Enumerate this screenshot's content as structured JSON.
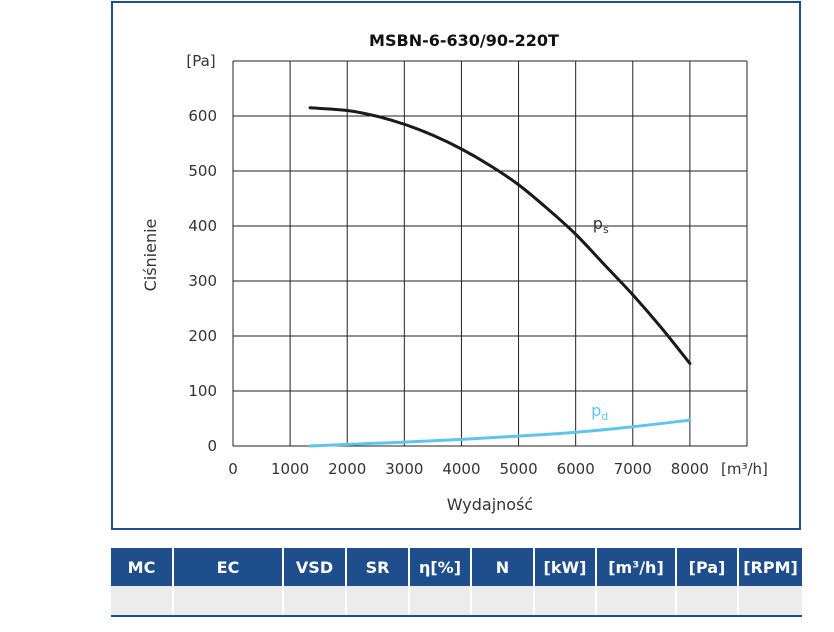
{
  "chart_data": {
    "type": "line",
    "title": "MSBN-6-630/90-220T",
    "xlabel": "Wydajność",
    "ylabel": "Ciśnienie",
    "x_unit_label": "[m³/h]",
    "y_unit_label": "[Pa]",
    "xlim": [
      0,
      9000
    ],
    "ylim": [
      0,
      700
    ],
    "x_ticks": [
      0,
      1000,
      2000,
      3000,
      4000,
      5000,
      6000,
      7000,
      8000
    ],
    "y_ticks": [
      0,
      100,
      200,
      300,
      400,
      500,
      600
    ],
    "grid": true,
    "series": [
      {
        "name": "ps",
        "label_main": "p",
        "label_sub": "s",
        "color": "#1a1a1a",
        "x": [
          1350,
          2000,
          2500,
          3000,
          3500,
          4000,
          4500,
          5000,
          5500,
          6000,
          6500,
          7000,
          7500,
          8000
        ],
        "y": [
          615,
          610,
          600,
          585,
          565,
          540,
          510,
          475,
          432,
          385,
          330,
          275,
          215,
          150
        ]
      },
      {
        "name": "pd",
        "label_main": "p",
        "label_sub": "d",
        "color": "#5ec5ee",
        "x": [
          1350,
          2000,
          3000,
          4000,
          5000,
          6000,
          7000,
          8000
        ],
        "y": [
          0,
          3,
          7,
          12,
          18,
          25,
          35,
          47
        ]
      }
    ]
  },
  "table": {
    "headers": [
      "MC",
      "EC",
      "VSD",
      "SR",
      "η[%]",
      "N",
      "[kW]",
      "[m³/h]",
      "[Pa]",
      "[RPM]"
    ],
    "row": [
      "",
      "",
      "",
      "",
      "",
      "",
      "",
      "",
      "",
      ""
    ]
  }
}
